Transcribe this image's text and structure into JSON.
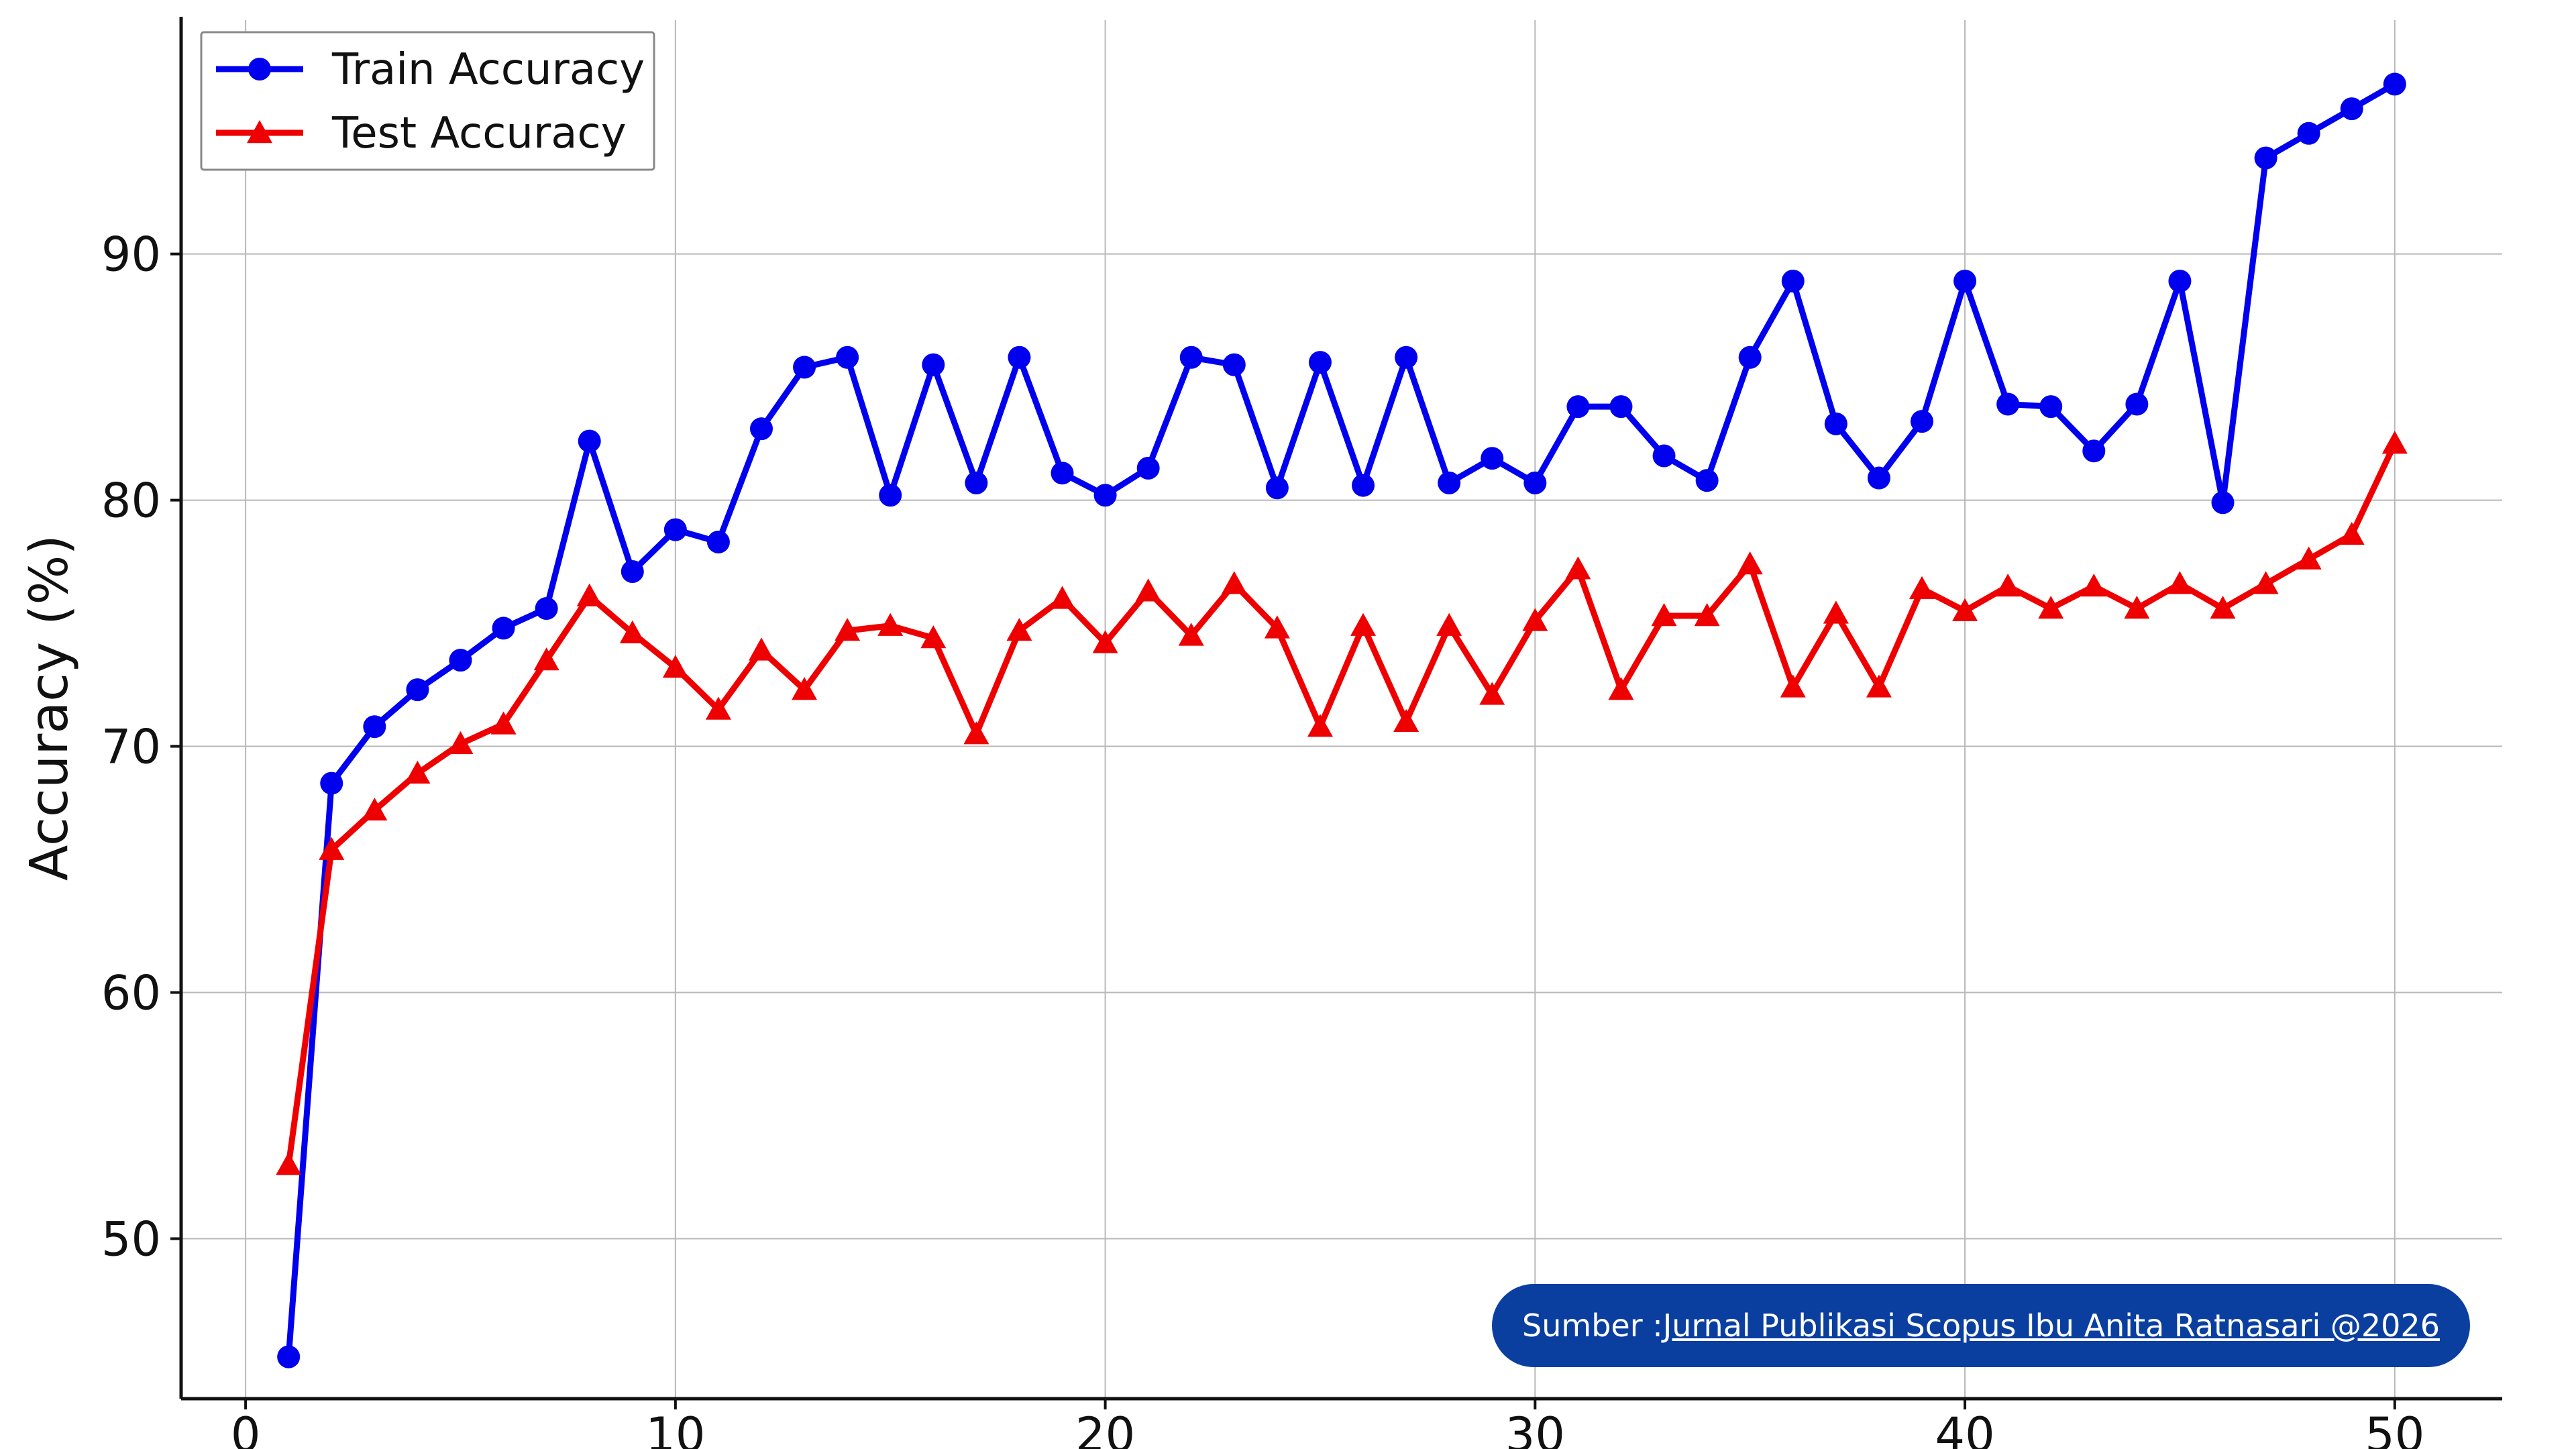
{
  "chart_data": {
    "type": "line",
    "title": "",
    "xlabel": "",
    "ylabel": "Accuracy (%)",
    "xlim": [
      -1.5,
      52.5
    ],
    "ylim": [
      43.5,
      99.5
    ],
    "x_ticks": [
      0,
      10,
      20,
      30,
      40,
      50
    ],
    "y_ticks": [
      50,
      60,
      70,
      80,
      90
    ],
    "grid": true,
    "legend_position": "top-left",
    "x": [
      1,
      2,
      3,
      4,
      5,
      6,
      7,
      8,
      9,
      10,
      11,
      12,
      13,
      14,
      15,
      16,
      17,
      18,
      19,
      20,
      21,
      22,
      23,
      24,
      25,
      26,
      27,
      28,
      29,
      30,
      31,
      32,
      33,
      34,
      35,
      36,
      37,
      38,
      39,
      40,
      41,
      42,
      43,
      44,
      45,
      46,
      47,
      48,
      49,
      50
    ],
    "series": [
      {
        "name": "Train Accuracy",
        "color": "#0000ee",
        "marker": "circle",
        "values": [
          45.2,
          68.5,
          70.8,
          72.3,
          73.5,
          74.8,
          75.6,
          82.4,
          77.1,
          78.8,
          78.3,
          82.9,
          85.4,
          85.8,
          80.2,
          85.5,
          80.7,
          85.8,
          81.1,
          80.2,
          81.3,
          85.8,
          85.5,
          80.5,
          85.6,
          80.6,
          85.8,
          80.7,
          81.7,
          80.7,
          83.8,
          83.8,
          81.8,
          80.8,
          85.8,
          88.9,
          83.1,
          80.9,
          83.2,
          88.9,
          83.9,
          83.8,
          82.0,
          83.9,
          88.9,
          79.9,
          93.9,
          94.9,
          95.9,
          96.9
        ]
      },
      {
        "name": "Test Accuracy",
        "color": "#ee0000",
        "marker": "triangle",
        "values": [
          53.0,
          65.8,
          67.4,
          68.9,
          70.1,
          70.9,
          73.5,
          76.1,
          74.6,
          73.2,
          71.5,
          73.9,
          72.3,
          74.7,
          74.9,
          74.4,
          70.5,
          74.7,
          76.0,
          74.2,
          76.3,
          74.5,
          76.6,
          74.8,
          70.8,
          74.9,
          71.0,
          74.9,
          72.1,
          75.1,
          77.2,
          72.3,
          75.3,
          75.3,
          77.4,
          72.4,
          75.4,
          72.4,
          76.4,
          75.5,
          76.5,
          75.6,
          76.5,
          75.6,
          76.6,
          75.6,
          76.6,
          77.6,
          78.6,
          82.3
        ]
      }
    ]
  },
  "source": {
    "prefix": "Sumber : ",
    "link_text": "Jurnal Publikasi Scopus Ibu Anita Ratnasari @2026",
    "pill_color": "#0a3fa0"
  }
}
